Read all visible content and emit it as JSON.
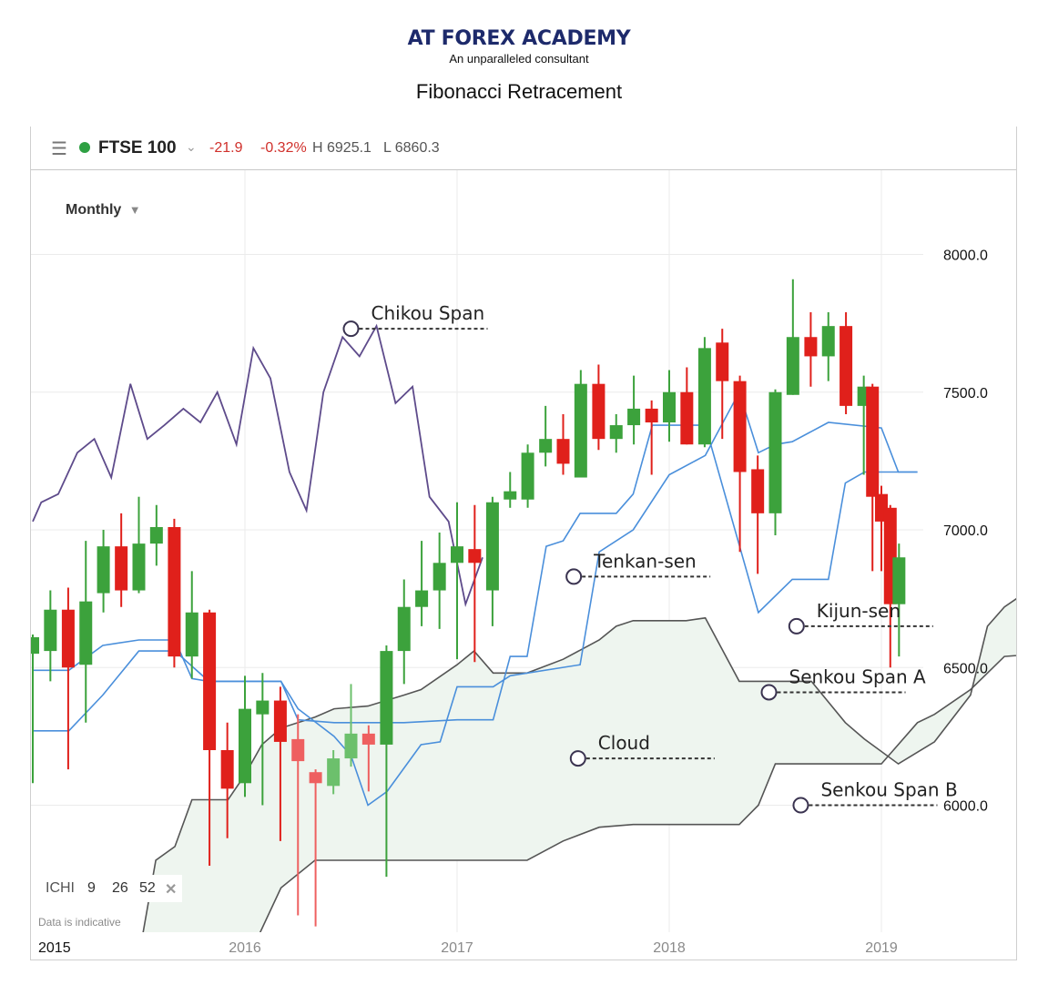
{
  "header": {
    "brand": "AT FOREX ACADEMY",
    "tagline": "An unparalleled consultant",
    "title": "Fibonacci Retracement"
  },
  "topbar": {
    "menu_icon": "hamburger-icon",
    "symbol": "FTSE 100",
    "change": "-21.9",
    "change_pct": "-0.32%",
    "high": "H 6925.1",
    "low": "L 6860.3",
    "status_color": "#2ea043",
    "negative_color": "#d0302b"
  },
  "period": {
    "label": "Monthly",
    "icon": "caret-down-icon"
  },
  "indicator": {
    "name": "ICHI",
    "p1": "9",
    "p2": "26",
    "p3": "52",
    "close_icon": "close-icon"
  },
  "disclaimer": "Data is indicative",
  "chart_data": {
    "type": "candlestick",
    "ylim": [
      5500,
      8500
    ],
    "yticks": [
      {
        "v": 6000,
        "label": "6000.0"
      },
      {
        "v": 6500,
        "label": "6500.0"
      },
      {
        "v": 7000,
        "label": "7000.0"
      },
      {
        "v": 7500,
        "label": "7500.0"
      },
      {
        "v": 8000,
        "label": "8000.0"
      }
    ],
    "xlim": [
      2015.0,
      2019.65
    ],
    "xticks": [
      {
        "v": 2015.0,
        "label": "2015",
        "edge": true
      },
      {
        "v": 2016.0,
        "label": "2016"
      },
      {
        "v": 2017.0,
        "label": "2017"
      },
      {
        "v": 2018.0,
        "label": "2018"
      },
      {
        "v": 2019.0,
        "label": "2019"
      }
    ],
    "colors": {
      "up": "#3ca23c",
      "down": "#e0201b",
      "up_faded": "#6cc06c",
      "down_faded": "#ee6060",
      "tenkan": "#4a8fdb",
      "kijun": "#4a8fdb",
      "chikou": "#5e4b8b",
      "spanA": "#555555",
      "spanB": "#555555",
      "cloud": "#eef5ef"
    },
    "candles": [
      {
        "t": 2015.0,
        "o": 6550,
        "h": 6620,
        "l": 6080,
        "c": 6610
      },
      {
        "t": 2015.083,
        "o": 6560,
        "h": 6780,
        "l": 6450,
        "c": 6710
      },
      {
        "t": 2015.167,
        "o": 6710,
        "h": 6790,
        "l": 6130,
        "c": 6500
      },
      {
        "t": 2015.25,
        "o": 6510,
        "h": 6960,
        "l": 6300,
        "c": 6740
      },
      {
        "t": 2015.333,
        "o": 6770,
        "h": 7000,
        "l": 6700,
        "c": 6940
      },
      {
        "t": 2015.417,
        "o": 6940,
        "h": 7060,
        "l": 6720,
        "c": 6780
      },
      {
        "t": 2015.5,
        "o": 6780,
        "h": 7120,
        "l": 6770,
        "c": 6950
      },
      {
        "t": 2015.583,
        "o": 6950,
        "h": 7090,
        "l": 6870,
        "c": 7010
      },
      {
        "t": 2015.667,
        "o": 7010,
        "h": 7040,
        "l": 6500,
        "c": 6540
      },
      {
        "t": 2015.75,
        "o": 6540,
        "h": 6850,
        "l": 6460,
        "c": 6700
      },
      {
        "t": 2015.833,
        "o": 6700,
        "h": 6710,
        "l": 5780,
        "c": 6200
      },
      {
        "t": 2015.917,
        "o": 6200,
        "h": 6300,
        "l": 5880,
        "c": 6060
      },
      {
        "t": 2016.0,
        "o": 6080,
        "h": 6470,
        "l": 6030,
        "c": 6350
      },
      {
        "t": 2016.083,
        "o": 6330,
        "h": 6480,
        "l": 6000,
        "c": 6380
      },
      {
        "t": 2016.167,
        "o": 6380,
        "h": 6430,
        "l": 5870,
        "c": 6230
      },
      {
        "t": 2016.25,
        "o": 6240,
        "h": 6330,
        "l": 5600,
        "c": 6160,
        "faded": true
      },
      {
        "t": 2016.333,
        "o": 6120,
        "h": 6130,
        "l": 5560,
        "c": 6080,
        "faded": true
      },
      {
        "t": 2016.417,
        "o": 6070,
        "h": 6200,
        "l": 6040,
        "c": 6170,
        "faded": true
      },
      {
        "t": 2016.5,
        "o": 6170,
        "h": 6440,
        "l": 6140,
        "c": 6260,
        "faded": true
      },
      {
        "t": 2016.583,
        "o": 6260,
        "h": 6290,
        "l": 6050,
        "c": 6220,
        "faded": true
      },
      {
        "t": 2016.667,
        "o": 6220,
        "h": 6580,
        "l": 5740,
        "c": 6560
      },
      {
        "t": 2016.75,
        "o": 6560,
        "h": 6820,
        "l": 6440,
        "c": 6720
      },
      {
        "t": 2016.833,
        "o": 6720,
        "h": 6960,
        "l": 6650,
        "c": 6780
      },
      {
        "t": 2016.917,
        "o": 6780,
        "h": 6990,
        "l": 6640,
        "c": 6880
      },
      {
        "t": 2017.0,
        "o": 6880,
        "h": 7100,
        "l": 6530,
        "c": 6940
      },
      {
        "t": 2017.083,
        "o": 6930,
        "h": 7090,
        "l": 6520,
        "c": 6880
      },
      {
        "t": 2017.167,
        "o": 6780,
        "h": 7120,
        "l": 6650,
        "c": 7100
      },
      {
        "t": 2017.25,
        "o": 7110,
        "h": 7210,
        "l": 7080,
        "c": 7140
      },
      {
        "t": 2017.333,
        "o": 7110,
        "h": 7310,
        "l": 7080,
        "c": 7280
      },
      {
        "t": 2017.417,
        "o": 7280,
        "h": 7450,
        "l": 7230,
        "c": 7330
      },
      {
        "t": 2017.5,
        "o": 7330,
        "h": 7420,
        "l": 7200,
        "c": 7240
      },
      {
        "t": 2017.583,
        "o": 7190,
        "h": 7580,
        "l": 7190,
        "c": 7530
      },
      {
        "t": 2017.667,
        "o": 7530,
        "h": 7600,
        "l": 7290,
        "c": 7330
      },
      {
        "t": 2017.75,
        "o": 7330,
        "h": 7420,
        "l": 7280,
        "c": 7380
      },
      {
        "t": 2017.833,
        "o": 7380,
        "h": 7560,
        "l": 7310,
        "c": 7440
      },
      {
        "t": 2017.917,
        "o": 7440,
        "h": 7470,
        "l": 7200,
        "c": 7390
      },
      {
        "t": 2018.0,
        "o": 7390,
        "h": 7580,
        "l": 7320,
        "c": 7500
      },
      {
        "t": 2018.083,
        "o": 7500,
        "h": 7590,
        "l": 7310,
        "c": 7310
      },
      {
        "t": 2018.167,
        "o": 7310,
        "h": 7700,
        "l": 7300,
        "c": 7660
      },
      {
        "t": 2018.25,
        "o": 7680,
        "h": 7730,
        "l": 7330,
        "c": 7540
      },
      {
        "t": 2018.333,
        "o": 7540,
        "h": 7560,
        "l": 6920,
        "c": 7210
      },
      {
        "t": 2018.417,
        "o": 7220,
        "h": 7270,
        "l": 6840,
        "c": 7060
      },
      {
        "t": 2018.5,
        "o": 7060,
        "h": 7510,
        "l": 6980,
        "c": 7500
      },
      {
        "t": 2018.583,
        "o": 7490,
        "h": 7910,
        "l": 7490,
        "c": 7700
      },
      {
        "t": 2018.667,
        "o": 7700,
        "h": 7790,
        "l": 7520,
        "c": 7630
      },
      {
        "t": 2018.75,
        "o": 7630,
        "h": 7790,
        "l": 7540,
        "c": 7740
      },
      {
        "t": 2018.833,
        "o": 7740,
        "h": 7790,
        "l": 7420,
        "c": 7450
      },
      {
        "t": 2018.917,
        "o": 7450,
        "h": 7560,
        "l": 7200,
        "c": 7520
      },
      {
        "t": 2018.958,
        "o": 7520,
        "h": 7530,
        "l": 6850,
        "c": 7120
      },
      {
        "t": 2019.0,
        "o": 7130,
        "h": 7160,
        "l": 6850,
        "c": 7030
      },
      {
        "t": 2019.042,
        "o": 7080,
        "h": 7090,
        "l": 6500,
        "c": 6730
      },
      {
        "t": 2019.083,
        "o": 6730,
        "h": 6950,
        "l": 6540,
        "c": 6900
      }
    ],
    "tenkan": [
      [
        2015.0,
        6490
      ],
      [
        2015.17,
        6490
      ],
      [
        2015.33,
        6580
      ],
      [
        2015.5,
        6600
      ],
      [
        2015.67,
        6600
      ],
      [
        2015.75,
        6460
      ],
      [
        2015.83,
        6450
      ],
      [
        2016.17,
        6450
      ],
      [
        2016.25,
        6350
      ],
      [
        2016.42,
        6250
      ],
      [
        2016.5,
        6180
      ],
      [
        2016.58,
        6000
      ],
      [
        2016.67,
        6050
      ],
      [
        2016.83,
        6220
      ],
      [
        2016.92,
        6230
      ],
      [
        2017.0,
        6430
      ],
      [
        2017.17,
        6430
      ],
      [
        2017.25,
        6470
      ],
      [
        2017.58,
        6510
      ],
      [
        2017.67,
        6920
      ],
      [
        2017.83,
        7000
      ],
      [
        2018.0,
        7200
      ],
      [
        2018.17,
        7270
      ],
      [
        2018.33,
        7500
      ],
      [
        2018.42,
        7280
      ],
      [
        2018.5,
        7310
      ],
      [
        2018.58,
        7320
      ],
      [
        2018.75,
        7390
      ],
      [
        2019.0,
        7370
      ],
      [
        2019.08,
        7210
      ],
      [
        2019.17,
        7210
      ]
    ],
    "kijun": [
      [
        2015.0,
        6270
      ],
      [
        2015.17,
        6270
      ],
      [
        2015.33,
        6400
      ],
      [
        2015.5,
        6560
      ],
      [
        2015.67,
        6560
      ],
      [
        2015.83,
        6450
      ],
      [
        2016.17,
        6450
      ],
      [
        2016.25,
        6310
      ],
      [
        2016.42,
        6300
      ],
      [
        2016.75,
        6300
      ],
      [
        2017.0,
        6310
      ],
      [
        2017.17,
        6310
      ],
      [
        2017.25,
        6540
      ],
      [
        2017.33,
        6540
      ],
      [
        2017.42,
        6940
      ],
      [
        2017.5,
        6960
      ],
      [
        2017.58,
        7060
      ],
      [
        2017.75,
        7060
      ],
      [
        2017.83,
        7130
      ],
      [
        2017.92,
        7380
      ],
      [
        2018.17,
        7380
      ],
      [
        2018.42,
        6700
      ],
      [
        2018.58,
        6820
      ],
      [
        2018.75,
        6820
      ],
      [
        2018.83,
        7170
      ],
      [
        2018.92,
        7210
      ],
      [
        2019.17,
        7210
      ]
    ],
    "chikou": [
      [
        2015.0,
        7030
      ],
      [
        2015.04,
        7100
      ],
      [
        2015.12,
        7130
      ],
      [
        2015.21,
        7280
      ],
      [
        2015.29,
        7330
      ],
      [
        2015.37,
        7190
      ],
      [
        2015.46,
        7530
      ],
      [
        2015.54,
        7330
      ],
      [
        2015.62,
        7380
      ],
      [
        2015.71,
        7440
      ],
      [
        2015.79,
        7390
      ],
      [
        2015.87,
        7500
      ],
      [
        2015.96,
        7310
      ],
      [
        2016.04,
        7660
      ],
      [
        2016.12,
        7550
      ],
      [
        2016.21,
        7210
      ],
      [
        2016.29,
        7070
      ],
      [
        2016.37,
        7500
      ],
      [
        2016.46,
        7700
      ],
      [
        2016.54,
        7630
      ],
      [
        2016.62,
        7740
      ],
      [
        2016.71,
        7460
      ],
      [
        2016.79,
        7520
      ],
      [
        2016.87,
        7120
      ],
      [
        2016.96,
        7030
      ],
      [
        2017.04,
        6730
      ],
      [
        2017.12,
        6900
      ]
    ],
    "span_a": [
      [
        2015.5,
        5450
      ],
      [
        2015.58,
        5800
      ],
      [
        2015.67,
        5850
      ],
      [
        2015.75,
        6020
      ],
      [
        2015.92,
        6020
      ],
      [
        2016.0,
        6110
      ],
      [
        2016.08,
        6220
      ],
      [
        2016.17,
        6280
      ],
      [
        2016.25,
        6300
      ],
      [
        2016.33,
        6320
      ],
      [
        2016.42,
        6350
      ],
      [
        2016.58,
        6360
      ],
      [
        2016.75,
        6400
      ],
      [
        2016.83,
        6420
      ],
      [
        2017.0,
        6510
      ],
      [
        2017.08,
        6560
      ],
      [
        2017.17,
        6480
      ],
      [
        2017.33,
        6480
      ],
      [
        2017.5,
        6530
      ],
      [
        2017.67,
        6600
      ],
      [
        2017.75,
        6650
      ],
      [
        2017.83,
        6670
      ],
      [
        2018.08,
        6670
      ],
      [
        2018.17,
        6680
      ],
      [
        2018.33,
        6450
      ],
      [
        2018.67,
        6450
      ],
      [
        2018.83,
        6300
      ],
      [
        2018.92,
        6240
      ],
      [
        2019.08,
        6150
      ],
      [
        2019.25,
        6230
      ],
      [
        2019.42,
        6400
      ],
      [
        2019.5,
        6650
      ],
      [
        2019.58,
        6720
      ],
      [
        2019.75,
        6810
      ],
      [
        2019.9,
        6810
      ]
    ],
    "span_b": [
      [
        2016.0,
        5420
      ],
      [
        2016.17,
        5700
      ],
      [
        2016.33,
        5800
      ],
      [
        2017.0,
        5800
      ],
      [
        2017.17,
        5800
      ],
      [
        2017.33,
        5800
      ],
      [
        2017.5,
        5870
      ],
      [
        2017.67,
        5920
      ],
      [
        2017.83,
        5930
      ],
      [
        2018.33,
        5930
      ],
      [
        2018.42,
        6000
      ],
      [
        2018.5,
        6150
      ],
      [
        2018.58,
        6150
      ],
      [
        2018.92,
        6150
      ],
      [
        2019.0,
        6150
      ],
      [
        2019.17,
        6300
      ],
      [
        2019.25,
        6330
      ],
      [
        2019.42,
        6420
      ],
      [
        2019.5,
        6480
      ],
      [
        2019.58,
        6540
      ],
      [
        2019.75,
        6550
      ],
      [
        2019.9,
        6550
      ]
    ],
    "annotations": [
      {
        "label": "Chikou Span",
        "x": 2016.5,
        "y": 7730,
        "dir": "right"
      },
      {
        "label": "Tenkan-sen",
        "x": 2017.55,
        "y": 6830,
        "dir": "right"
      },
      {
        "label": "Kijun-sen",
        "x": 2018.6,
        "y": 6650,
        "dir": "right"
      },
      {
        "label": "Senkou Span A",
        "x": 2018.47,
        "y": 6410,
        "dir": "right"
      },
      {
        "label": "Cloud",
        "x": 2017.57,
        "y": 6170,
        "dir": "right"
      },
      {
        "label": "Senkou Span B",
        "x": 2018.62,
        "y": 6000,
        "dir": "right"
      }
    ]
  }
}
